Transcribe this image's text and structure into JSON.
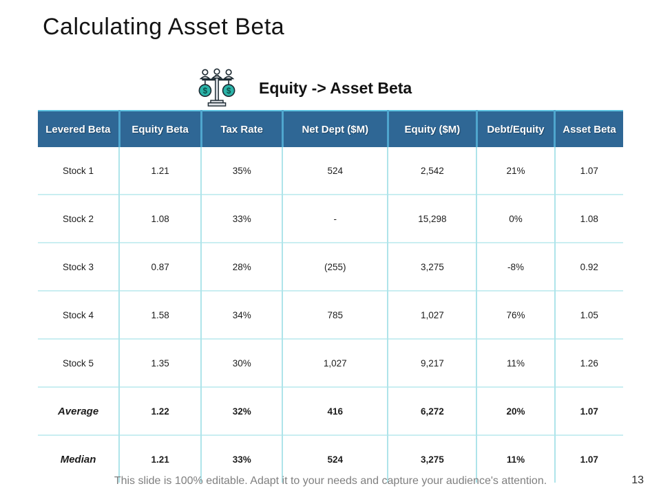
{
  "slide": {
    "title": "Calculating Asset Beta",
    "subtitle": "Equity -> Asset Beta",
    "footer": "This slide is 100% editable. Adapt it to your needs and capture your audience's attention.",
    "page_number": "13"
  },
  "icons": {
    "balance_icon": "balance-scale-with-dollar-coins-and-people",
    "coin_color": "#2bb3a8",
    "outline_color": "#1d2a32",
    "base_color": "#dfe3e8"
  },
  "colors": {
    "header_bg": "#2f6795",
    "header_divider": "#4fa6ce",
    "table_top_border": "#5bc2e0",
    "body_border": "#aee4ea",
    "header_text": "#ffffff",
    "footer_text": "#7f7f7f"
  },
  "table": {
    "columns": [
      "Levered Beta",
      "Equity Beta",
      "Tax Rate",
      "Net Dept ($M)",
      "Equity ($M)",
      "Debt/Equity",
      "Asset Beta"
    ],
    "rows": [
      {
        "label": "Stock 1",
        "values": [
          "1.21",
          "35%",
          "524",
          "2,542",
          "21%",
          "1.07"
        ],
        "emphasis": false
      },
      {
        "label": "Stock 2",
        "values": [
          "1.08",
          "33%",
          "-",
          "15,298",
          "0%",
          "1.08"
        ],
        "emphasis": false
      },
      {
        "label": "Stock 3",
        "values": [
          "0.87",
          "28%",
          "(255)",
          "3,275",
          "-8%",
          "0.92"
        ],
        "emphasis": false
      },
      {
        "label": "Stock 4",
        "values": [
          "1.58",
          "34%",
          "785",
          "1,027",
          "76%",
          "1.05"
        ],
        "emphasis": false
      },
      {
        "label": "Stock 5",
        "values": [
          "1.35",
          "30%",
          "1,027",
          "9,217",
          "11%",
          "1.26"
        ],
        "emphasis": false
      },
      {
        "label": "Average",
        "values": [
          "1.22",
          "32%",
          "416",
          "6,272",
          "20%",
          "1.07"
        ],
        "emphasis": true
      },
      {
        "label": "Median",
        "values": [
          "1.21",
          "33%",
          "524",
          "3,275",
          "11%",
          "1.07"
        ],
        "emphasis": true
      }
    ]
  }
}
